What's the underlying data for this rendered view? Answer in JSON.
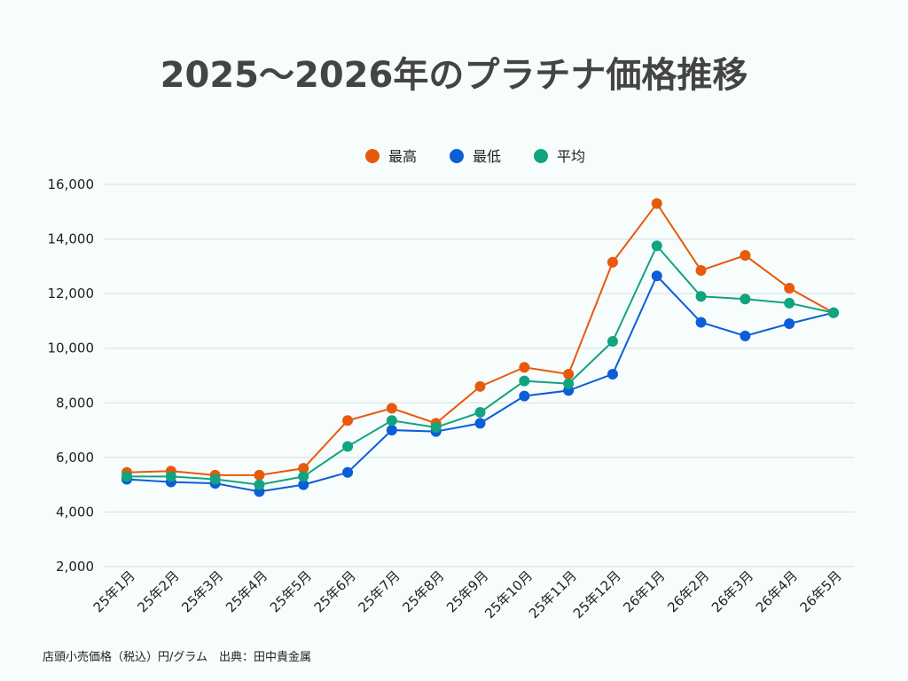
{
  "chart_data": {
    "type": "line",
    "title": "2025〜2026年のプラチナ価格推移",
    "categories": [
      "25年1月",
      "25年2月",
      "25年3月",
      "25年4月",
      "25年5月",
      "25年6月",
      "25年7月",
      "25年8月",
      "25年9月",
      "25年10月",
      "25年11月",
      "25年12月",
      "26年1月",
      "26年2月",
      "26年3月",
      "26年4月",
      "26年5月"
    ],
    "series": [
      {
        "name": "最高",
        "color": "#e8590c",
        "values": [
          5450,
          5500,
          5350,
          5350,
          5600,
          7350,
          7800,
          7250,
          8600,
          9300,
          9050,
          13150,
          15300,
          12850,
          13400,
          12200,
          11300
        ]
      },
      {
        "name": "最低",
        "color": "#0b5ed7",
        "values": [
          5200,
          5100,
          5050,
          4750,
          5000,
          5450,
          7000,
          6950,
          7250,
          8250,
          8450,
          9050,
          12650,
          10950,
          10450,
          10900,
          11300
        ]
      },
      {
        "name": "平均",
        "color": "#12a37f",
        "values": [
          5300,
          5300,
          5200,
          5000,
          5300,
          6400,
          7350,
          7100,
          7650,
          8800,
          8700,
          10250,
          13750,
          11900,
          11800,
          11650,
          11300
        ]
      }
    ],
    "yticks": [
      "2,000",
      "4,000",
      "6,000",
      "8,000",
      "10,000",
      "12,000",
      "14,000",
      "16,000"
    ],
    "ylim": [
      2000,
      16000
    ],
    "grid": true,
    "legend_position": "top-center"
  },
  "footnote": "店頭小売価格（税込）円/グラム　出典：田中貴金属"
}
